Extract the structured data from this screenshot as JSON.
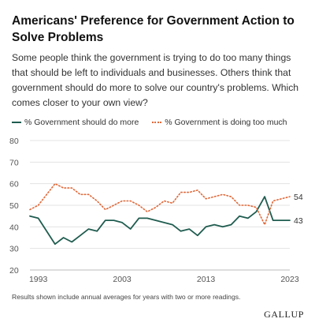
{
  "title": "Americans' Preference for Government Action to Solve Problems",
  "subtitle": "Some people think the government is trying to do too many things that should be left to individuals and businesses. Others think that government should do more to solve our country's problems. Which comes closer to your own view?",
  "footnote": "Results shown include annual averages for years with two or more readings.",
  "brand": "GALLUP",
  "chart_data": {
    "type": "line",
    "xlim": [
      1992,
      2023
    ],
    "ylim": [
      20,
      80
    ],
    "yticks": [
      20,
      30,
      40,
      50,
      60,
      70,
      80
    ],
    "xticks": [
      1993,
      2003,
      2013,
      2023
    ],
    "grid": true,
    "legend_position": "top",
    "series": [
      {
        "name": "% Government should do more",
        "color": "#1f5c4f",
        "style": "solid",
        "end_label": "43",
        "points": [
          [
            1992,
            45
          ],
          [
            1993,
            44
          ],
          [
            1995,
            32
          ],
          [
            1996,
            35
          ],
          [
            1997,
            33
          ],
          [
            1998,
            36
          ],
          [
            1999,
            39
          ],
          [
            2000,
            38
          ],
          [
            2001,
            43
          ],
          [
            2002,
            43
          ],
          [
            2003,
            42
          ],
          [
            2004,
            39
          ],
          [
            2005,
            44
          ],
          [
            2006,
            44
          ],
          [
            2007,
            43
          ],
          [
            2008,
            42
          ],
          [
            2009,
            41
          ],
          [
            2010,
            38
          ],
          [
            2011,
            39
          ],
          [
            2012,
            36
          ],
          [
            2013,
            40
          ],
          [
            2014,
            41
          ],
          [
            2015,
            40
          ],
          [
            2016,
            41
          ],
          [
            2017,
            45
          ],
          [
            2018,
            44
          ],
          [
            2019,
            47
          ],
          [
            2020,
            54
          ],
          [
            2021,
            43
          ],
          [
            2022,
            43
          ],
          [
            2023,
            43
          ]
        ]
      },
      {
        "name": "% Government is doing too much",
        "color": "#e0693a",
        "style": "dotted",
        "end_label": "54",
        "points": [
          [
            1992,
            48
          ],
          [
            1993,
            50
          ],
          [
            1995,
            60
          ],
          [
            1996,
            58
          ],
          [
            1997,
            58
          ],
          [
            1998,
            55
          ],
          [
            1999,
            55
          ],
          [
            2000,
            52
          ],
          [
            2001,
            48
          ],
          [
            2002,
            50
          ],
          [
            2003,
            52
          ],
          [
            2004,
            52
          ],
          [
            2005,
            50
          ],
          [
            2006,
            47
          ],
          [
            2007,
            49
          ],
          [
            2008,
            52
          ],
          [
            2009,
            51
          ],
          [
            2010,
            56
          ],
          [
            2011,
            56
          ],
          [
            2012,
            57
          ],
          [
            2013,
            53
          ],
          [
            2014,
            54
          ],
          [
            2015,
            55
          ],
          [
            2016,
            54
          ],
          [
            2017,
            50
          ],
          [
            2018,
            50
          ],
          [
            2019,
            49
          ],
          [
            2020,
            41
          ],
          [
            2021,
            52
          ],
          [
            2022,
            53
          ],
          [
            2023,
            54
          ]
        ]
      }
    ]
  }
}
